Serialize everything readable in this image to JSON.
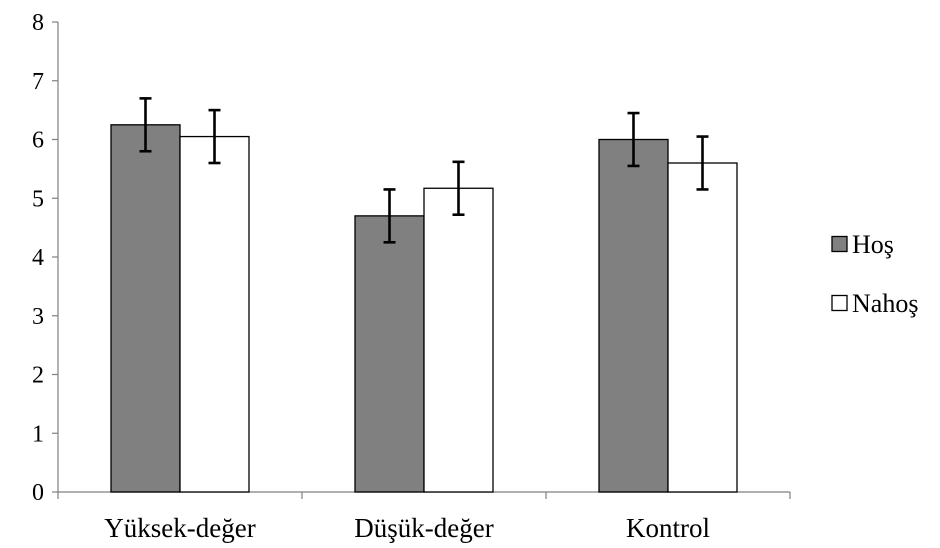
{
  "chart_data": {
    "type": "bar",
    "title": "",
    "xlabel": "",
    "ylabel": "",
    "categories": [
      "Yüksek-değer",
      "Düşük-değer",
      "Kontrol"
    ],
    "ylim": [
      0,
      8
    ],
    "yticks": [
      "0",
      "1",
      "2",
      "3",
      "4",
      "5",
      "6",
      "7",
      "8"
    ],
    "grid": false,
    "legend_position": "right",
    "series": [
      {
        "name": "Hoş",
        "color": "#808080",
        "values": [
          6.25,
          4.7,
          6.0
        ],
        "error": [
          0.45,
          0.45,
          0.45
        ]
      },
      {
        "name": "Nahoş",
        "color": "#ffffff",
        "values": [
          6.05,
          5.17,
          5.6
        ],
        "error": [
          0.45,
          0.45,
          0.45
        ]
      }
    ]
  }
}
